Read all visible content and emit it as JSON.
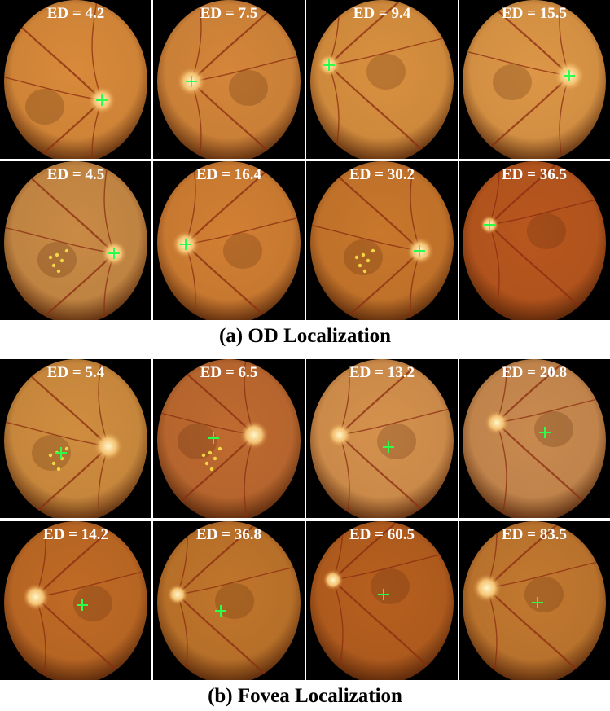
{
  "sections": [
    {
      "caption": "(a) OD Localization",
      "marker_color": "#2bff4a",
      "rows": [
        [
          {
            "ed": "ED = 4.2"
          },
          {
            "ed": "ED = 7.5"
          },
          {
            "ed": "ED = 9.4"
          },
          {
            "ed": "ED = 15.5"
          }
        ],
        [
          {
            "ed": "ED = 4.5"
          },
          {
            "ed": "ED = 16.4"
          },
          {
            "ed": "ED = 30.2"
          },
          {
            "ed": "ED = 36.5"
          }
        ]
      ]
    },
    {
      "caption": "(b) Fovea Localization",
      "marker_color": "#2bff4a",
      "rows": [
        [
          {
            "ed": "ED = 5.4"
          },
          {
            "ed": "ED = 6.5"
          },
          {
            "ed": "ED = 13.2"
          },
          {
            "ed": "ED = 20.8"
          }
        ],
        [
          {
            "ed": "ED = 14.2"
          },
          {
            "ed": "ED = 36.8"
          },
          {
            "ed": "ED = 60.5"
          },
          {
            "ed": "ED = 83.5"
          }
        ]
      ]
    }
  ]
}
